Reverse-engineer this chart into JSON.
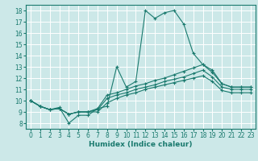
{
  "xlabel": "Humidex (Indice chaleur)",
  "xlim": [
    -0.5,
    23.5
  ],
  "ylim": [
    7.5,
    18.5
  ],
  "yticks": [
    8,
    9,
    10,
    11,
    12,
    13,
    14,
    15,
    16,
    17,
    18
  ],
  "xticks": [
    0,
    1,
    2,
    3,
    4,
    5,
    6,
    7,
    8,
    9,
    10,
    11,
    12,
    13,
    14,
    15,
    16,
    17,
    18,
    19,
    20,
    21,
    22,
    23
  ],
  "bg_color": "#cce8e8",
  "grid_color": "#ffffff",
  "line_color": "#1a7a6e",
  "lines": [
    {
      "x": [
        0,
        1,
        2,
        3,
        4,
        5,
        6,
        7,
        8,
        9,
        10,
        11,
        12,
        13,
        14,
        15,
        16,
        17,
        18,
        19,
        20,
        21,
        22,
        23
      ],
      "y": [
        10.0,
        9.5,
        9.2,
        9.4,
        8.0,
        8.7,
        8.7,
        9.3,
        9.5,
        13.0,
        11.2,
        11.7,
        18.0,
        17.3,
        17.8,
        18.0,
        16.8,
        14.2,
        13.2,
        12.7,
        11.5,
        11.2,
        11.2,
        11.2
      ]
    },
    {
      "x": [
        0,
        1,
        2,
        3,
        4,
        5,
        6,
        7,
        8,
        9,
        10,
        11,
        12,
        13,
        14,
        15,
        16,
        17,
        18,
        19,
        20,
        21,
        22,
        23
      ],
      "y": [
        10.0,
        9.5,
        9.2,
        9.3,
        8.8,
        9.0,
        9.0,
        9.3,
        10.5,
        10.7,
        11.0,
        11.3,
        11.5,
        11.8,
        12.0,
        12.3,
        12.6,
        12.9,
        13.2,
        12.5,
        11.5,
        11.2,
        11.2,
        11.2
      ]
    },
    {
      "x": [
        0,
        1,
        2,
        3,
        4,
        5,
        6,
        7,
        8,
        9,
        10,
        11,
        12,
        13,
        14,
        15,
        16,
        17,
        18,
        19,
        20,
        21,
        22,
        23
      ],
      "y": [
        10.0,
        9.5,
        9.2,
        9.3,
        8.8,
        9.0,
        9.0,
        9.2,
        10.2,
        10.5,
        10.7,
        11.0,
        11.2,
        11.4,
        11.7,
        11.9,
        12.1,
        12.4,
        12.7,
        12.1,
        11.2,
        11.0,
        11.0,
        11.0
      ]
    },
    {
      "x": [
        0,
        1,
        2,
        3,
        4,
        5,
        6,
        7,
        8,
        9,
        10,
        11,
        12,
        13,
        14,
        15,
        16,
        17,
        18,
        19,
        20,
        21,
        22,
        23
      ],
      "y": [
        10.0,
        9.5,
        9.2,
        9.3,
        8.8,
        9.0,
        9.0,
        9.0,
        9.8,
        10.2,
        10.5,
        10.7,
        11.0,
        11.2,
        11.4,
        11.6,
        11.8,
        12.0,
        12.2,
        11.7,
        10.9,
        10.7,
        10.7,
        10.7
      ]
    }
  ]
}
